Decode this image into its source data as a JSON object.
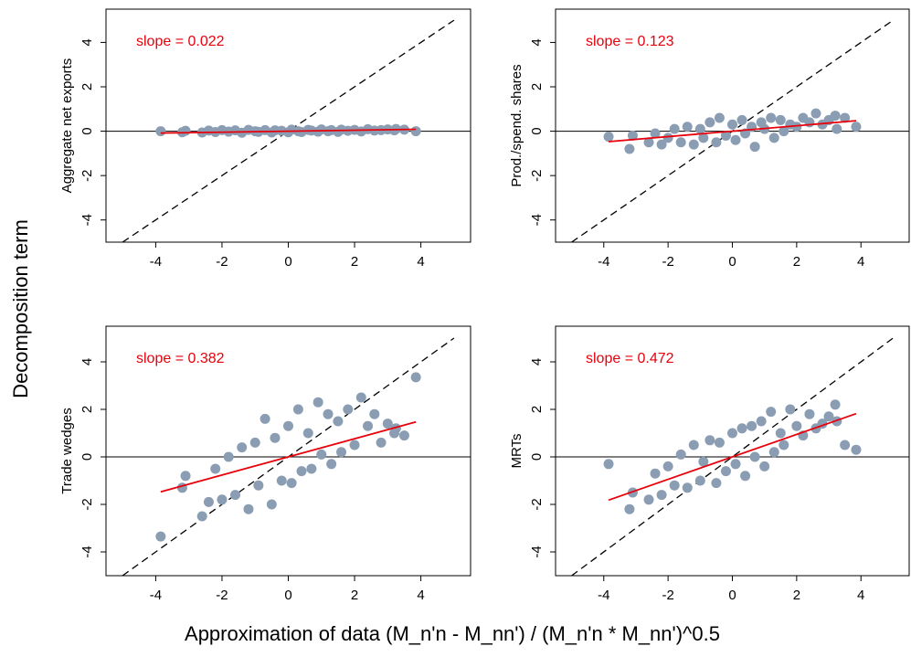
{
  "ylabel": "Decomposition term",
  "xlabel": "Approximation of data (M_n'n - M_nn') / (M_n'n * M_nn')^0.5",
  "chart_data": [
    {
      "type": "scatter",
      "ylabel": "Aggregate net exports",
      "annotation": "slope = 0.022",
      "color": "#8b9db3",
      "fit_color": "#e8000b",
      "xlim": [
        -5.5,
        5.5
      ],
      "ylim": [
        -5,
        5.5
      ],
      "xticks": [
        -4,
        -2,
        0,
        2,
        4
      ],
      "yticks": [
        -4,
        -2,
        0,
        2,
        4
      ],
      "hline": 0,
      "reference_line": {
        "x": [
          -5,
          5
        ],
        "y": [
          -5,
          5
        ]
      },
      "fit": {
        "x": [
          -3.85,
          3.85
        ],
        "y": [
          -0.085,
          0.085
        ]
      },
      "x": [
        -3.85,
        -3.2,
        -3.1,
        -2.6,
        -2.4,
        -2.2,
        -2.0,
        -1.8,
        -1.6,
        -1.4,
        -1.2,
        -1.0,
        -0.9,
        -0.7,
        -0.5,
        -0.4,
        -0.2,
        0,
        0.1,
        0.3,
        0.4,
        0.6,
        0.7,
        0.9,
        1.0,
        1.2,
        1.3,
        1.5,
        1.6,
        1.8,
        2.0,
        2.2,
        2.4,
        2.6,
        2.8,
        3.0,
        3.2,
        3.25,
        3.5,
        3.85
      ],
      "y": [
        0.0,
        -0.05,
        0.02,
        -0.06,
        0.03,
        -0.04,
        0.05,
        -0.02,
        0.04,
        -0.07,
        0.06,
        0.0,
        -0.03,
        0.05,
        -0.06,
        0.04,
        0.02,
        -0.05,
        0.07,
        0.0,
        -0.04,
        0.06,
        0.03,
        -0.02,
        0.08,
        0.0,
        0.05,
        -0.03,
        0.07,
        0.02,
        0.06,
        -0.01,
        0.09,
        0.03,
        0.05,
        0.08,
        0.04,
        0.1,
        0.07,
        0.0
      ]
    },
    {
      "type": "scatter",
      "ylabel": "Prod./spend. shares",
      "annotation": "slope = 0.123",
      "color": "#8b9db3",
      "fit_color": "#e8000b",
      "xlim": [
        -5.5,
        5.5
      ],
      "ylim": [
        -5,
        5.5
      ],
      "xticks": [
        -4,
        -2,
        0,
        2,
        4
      ],
      "yticks": [
        -4,
        -2,
        0,
        2,
        4
      ],
      "hline": 0,
      "reference_line": {
        "x": [
          -5,
          5
        ],
        "y": [
          -5,
          5
        ]
      },
      "fit": {
        "x": [
          -3.85,
          3.85
        ],
        "y": [
          -0.47,
          0.47
        ]
      },
      "x": [
        -3.85,
        -3.2,
        -3.1,
        -2.6,
        -2.4,
        -2.2,
        -2.0,
        -1.8,
        -1.6,
        -1.4,
        -1.2,
        -1.0,
        -0.9,
        -0.7,
        -0.5,
        -0.4,
        -0.2,
        0,
        0.1,
        0.3,
        0.4,
        0.6,
        0.7,
        0.9,
        1.0,
        1.2,
        1.3,
        1.5,
        1.6,
        1.8,
        2.0,
        2.2,
        2.4,
        2.6,
        2.8,
        3.0,
        3.2,
        3.25,
        3.5,
        3.85
      ],
      "y": [
        -0.25,
        -0.8,
        -0.2,
        -0.5,
        -0.1,
        -0.6,
        -0.3,
        0.1,
        -0.5,
        0.2,
        -0.6,
        0.1,
        -0.3,
        0.4,
        -0.5,
        0.6,
        -0.2,
        0.3,
        -0.4,
        0.5,
        -0.1,
        0.2,
        -0.7,
        0.4,
        0.1,
        0.6,
        -0.3,
        0.5,
        0.0,
        0.3,
        0.2,
        0.6,
        0.4,
        0.8,
        0.3,
        0.5,
        0.7,
        0.1,
        0.6,
        0.2
      ]
    },
    {
      "type": "scatter",
      "ylabel": "Trade wedges",
      "annotation": "slope = 0.382",
      "color": "#8b9db3",
      "fit_color": "#e8000b",
      "xlim": [
        -5.5,
        5.5
      ],
      "ylim": [
        -5,
        5.5
      ],
      "xticks": [
        -4,
        -2,
        0,
        2,
        4
      ],
      "yticks": [
        -4,
        -2,
        0,
        2,
        4
      ],
      "hline": 0,
      "reference_line": {
        "x": [
          -5,
          5
        ],
        "y": [
          -5,
          5
        ]
      },
      "fit": {
        "x": [
          -3.85,
          3.85
        ],
        "y": [
          -1.47,
          1.47
        ]
      },
      "x": [
        -3.85,
        -3.2,
        -3.1,
        -2.6,
        -2.4,
        -2.2,
        -2.0,
        -1.8,
        -1.6,
        -1.4,
        -1.2,
        -1.0,
        -0.9,
        -0.7,
        -0.5,
        -0.4,
        -0.2,
        0,
        0.1,
        0.3,
        0.4,
        0.6,
        0.7,
        0.9,
        1.0,
        1.2,
        1.3,
        1.5,
        1.6,
        1.8,
        2.0,
        2.2,
        2.4,
        2.6,
        2.8,
        3.0,
        3.2,
        3.25,
        3.5,
        3.85
      ],
      "y": [
        -3.35,
        -1.3,
        -0.8,
        -2.5,
        -1.9,
        -0.5,
        -1.8,
        0.0,
        -1.6,
        0.4,
        -2.2,
        0.6,
        -1.2,
        1.6,
        -2.0,
        0.8,
        -1.0,
        1.3,
        -1.1,
        2.0,
        -0.6,
        1.0,
        -0.5,
        2.3,
        0.1,
        1.8,
        -0.3,
        1.5,
        0.2,
        2.0,
        0.5,
        2.5,
        1.3,
        1.8,
        0.6,
        1.4,
        1.0,
        1.2,
        0.9,
        3.35
      ]
    },
    {
      "type": "scatter",
      "ylabel": "MRTs",
      "annotation": "slope = 0.472",
      "color": "#8b9db3",
      "fit_color": "#e8000b",
      "xlim": [
        -5.5,
        5.5
      ],
      "ylim": [
        -5,
        5.5
      ],
      "xticks": [
        -4,
        -2,
        0,
        2,
        4
      ],
      "yticks": [
        -4,
        -2,
        0,
        2,
        4
      ],
      "hline": 0,
      "reference_line": {
        "x": [
          -5,
          5
        ],
        "y": [
          -5,
          5
        ]
      },
      "fit": {
        "x": [
          -3.85,
          3.85
        ],
        "y": [
          -1.82,
          1.82
        ]
      },
      "x": [
        -3.85,
        -3.2,
        -3.1,
        -2.6,
        -2.4,
        -2.2,
        -2.0,
        -1.8,
        -1.6,
        -1.4,
        -1.2,
        -1.0,
        -0.9,
        -0.7,
        -0.5,
        -0.4,
        -0.2,
        0,
        0.1,
        0.3,
        0.4,
        0.6,
        0.7,
        0.9,
        1.0,
        1.2,
        1.3,
        1.5,
        1.6,
        1.8,
        2.0,
        2.2,
        2.4,
        2.6,
        2.8,
        3.0,
        3.2,
        3.25,
        3.5,
        3.85
      ],
      "y": [
        -0.3,
        -2.2,
        -1.5,
        -1.8,
        -0.7,
        -1.6,
        -0.4,
        -1.2,
        0.1,
        -1.3,
        0.5,
        -1.0,
        -0.2,
        0.7,
        -1.1,
        0.6,
        -0.6,
        1.0,
        -0.3,
        1.2,
        -0.8,
        1.3,
        0.0,
        1.5,
        -0.4,
        1.9,
        0.2,
        1.0,
        0.5,
        2.0,
        1.3,
        0.9,
        1.8,
        1.2,
        1.4,
        1.7,
        2.2,
        1.5,
        0.5,
        0.3
      ]
    }
  ]
}
